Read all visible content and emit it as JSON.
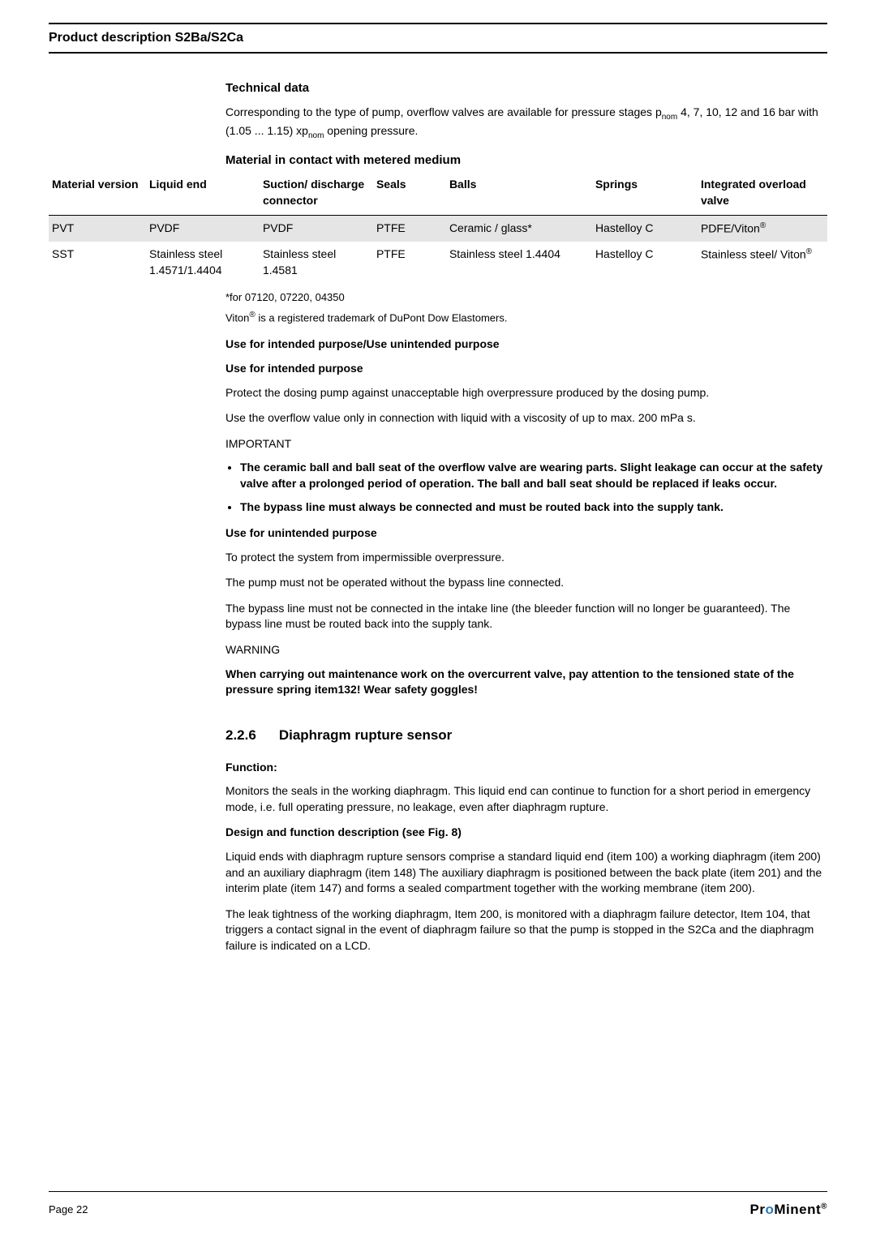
{
  "header": {
    "title": "Product description S2Ba/S2Ca"
  },
  "technical": {
    "heading": "Technical data",
    "paragraph": "Corresponding to the type of pump, overflow valves are available for pressure stages p<sub>nom</sub> 4, 7, 10, 12 and 16 bar with (1.05 ... 1.15) xp<sub>nom</sub> opening pressure.",
    "table_caption": "Material in contact with metered medium",
    "columns": [
      "Material version",
      "Liquid end",
      "Suction/ discharge connector",
      "Seals",
      "Balls",
      "Springs",
      "Integrated overload valve"
    ],
    "rows": [
      [
        "PVT",
        "PVDF",
        "PVDF",
        "PTFE",
        "Ceramic / glass*",
        "Hastelloy C",
        "PDFE/Viton<sup>®</sup>"
      ],
      [
        "SST",
        "Stainless steel 1.4571/1.4404",
        "Stainless steel 1.4581",
        "PTFE",
        "Stainless steel 1.4404",
        "Hastelloy C",
        "Stainless steel/ Viton<sup>®</sup>"
      ]
    ],
    "footnote1": "*for 07120, 07220, 04350",
    "footnote2": "Viton<sup>®</sup> is a registered trademark of DuPont Dow Elastomers."
  },
  "use": {
    "main_heading": "Use for intended purpose/Use unintended purpose",
    "intended_heading": "Use for intended purpose",
    "intended_p1": "Protect the dosing pump against unacceptable high overpressure produced by the dosing pump.",
    "intended_p2": "Use the overflow value only in connection with liquid with a viscosity of up to max. 200 mPa s.",
    "important_label": "IMPORTANT",
    "bullets": [
      "The ceramic ball and ball seat of the overflow valve are wearing parts. Slight leakage can occur at the safety valve after a prolonged period of operation. The ball and ball seat should be replaced if leaks occur.",
      "The bypass line must always be connected and must be routed back into the supply tank."
    ],
    "unintended_heading": "Use for unintended purpose",
    "unintended_p1": "To protect the system from impermissible overpressure.",
    "unintended_p2": "The pump must not be operated without the bypass line connected.",
    "unintended_p3": "The bypass line must not be connected in the intake line (the bleeder function will no longer be guaranteed). The bypass line must be routed back into the supply tank.",
    "warning_label": "WARNING",
    "warning_text": "When carrying out maintenance work on the overcurrent valve, pay attention to the tensioned state of the pressure spring item132! Wear safety goggles!"
  },
  "section": {
    "number": "2.2.6",
    "title": "Diaphragm rupture sensor",
    "function_heading": "Function:",
    "function_p": "Monitors the seals in the working diaphragm. This liquid end can continue to function for a short period in emergency mode, i.e. full operating pressure, no leakage, even after diaphragm rupture.",
    "design_heading": "Design and function description (see Fig. 8)",
    "design_p1": "Liquid ends with diaphragm rupture sensors comprise a standard liquid end (item 100) a working diaphragm (item 200) and an auxiliary diaphragm (item 148) The auxiliary diaphragm is positioned between the back plate (item 201) and the interim plate (item 147) and forms a sealed compartment together with the working membrane (item 200).",
    "design_p2": "The leak tightness of the working diaphragm, Item 200, is monitored with a diaphragm failure detector, Item 104, that triggers a contact signal in the event of diaphragm failure so that the pump is stopped in the S2Ca and the diaphragm failure is indicated on a LCD."
  },
  "footer": {
    "page": "Page 22",
    "brand": "ProMinent"
  }
}
